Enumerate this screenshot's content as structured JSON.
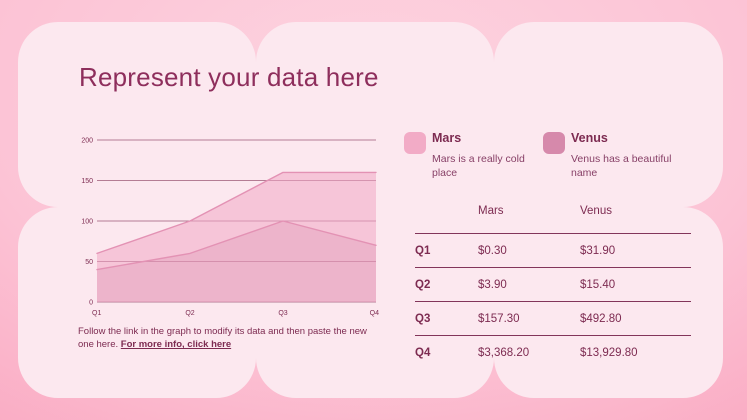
{
  "slide": {
    "title": "Represent your data here"
  },
  "colors": {
    "background_edge": "#f78cab",
    "background_center": "#fdd4e0",
    "panel": "#fce8ef",
    "title_text": "#8e2e5c",
    "body_text": "#7d2b51",
    "grid_line": "#9c5a76"
  },
  "legend": [
    {
      "name": "Mars",
      "description": "Mars is a really cold place",
      "color": "#f2abc6"
    },
    {
      "name": "Venus",
      "description": "Venus has a beautiful name",
      "color": "#d689ab"
    }
  ],
  "chart_data": {
    "type": "area",
    "x": [
      "Q1",
      "Q2",
      "Q3",
      "Q4"
    ],
    "series": [
      {
        "name": "Mars",
        "values": [
          60,
          100,
          160,
          160
        ],
        "fill": "rgba(241,167,196,0.55)",
        "line_color": "#e392b4"
      },
      {
        "name": "Venus",
        "values": [
          40,
          60,
          100,
          70
        ],
        "fill": "rgba(214,135,169,0.28)",
        "line_color": "#e392b4"
      }
    ],
    "ylim": [
      0,
      200
    ],
    "yticks": [
      0,
      50,
      100,
      150,
      200
    ],
    "grid": true,
    "grid_color": "#9c5a76",
    "tick_color": "#7d2b51",
    "legend_position": "right-top",
    "title": "",
    "xlabel": "",
    "ylabel": ""
  },
  "table": {
    "columns": [
      "",
      "Mars",
      "Venus"
    ],
    "rows": [
      {
        "label": "Q1",
        "mars": "$0.30",
        "venus": "$31.90"
      },
      {
        "label": "Q2",
        "mars": "$3.90",
        "venus": "$15.40"
      },
      {
        "label": "Q3",
        "mars": "$157.30",
        "venus": "$492.80"
      },
      {
        "label": "Q4",
        "mars": "$3,368.20",
        "venus": "$13,929.80"
      }
    ]
  },
  "footer": {
    "text": "Follow the link in the graph to modify its data and then paste the new one here.",
    "link_label": "For more info, click here"
  }
}
